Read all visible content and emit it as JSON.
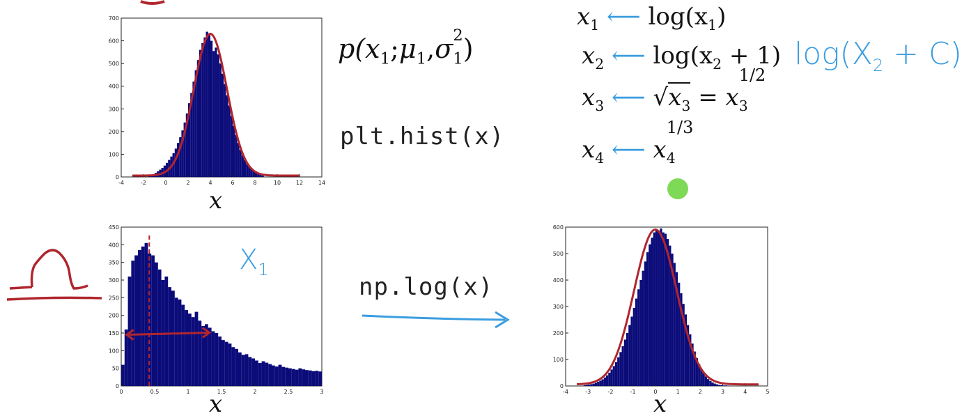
{
  "formula_p": {
    "lhs": "p(",
    "x": "x",
    "x_sub": "1",
    "semi": ";",
    "mu": "μ",
    "mu_sub": "1",
    "comma": ",",
    "sigma": "σ",
    "sigma_sub": "1",
    "sigma_sup": "2",
    "rhs": ")"
  },
  "code_hist": "plt.hist(x)",
  "code_log": "np.log(x)",
  "label_x1_hand": "X",
  "label_x1_hand_sub": "1",
  "handwritten_log": "log(X",
  "handwritten_log_sub": "2",
  "handwritten_log_rest": "+ C)",
  "transforms": [
    {
      "var": "x",
      "sub": "1",
      "expr": "log(x",
      "expr_sub": "1",
      "expr_end": ")"
    },
    {
      "var": "x",
      "sub": "2",
      "expr": "log(x",
      "expr_sub": "2",
      "expr_end": " + 1)"
    },
    {
      "var": "x",
      "sub": "3",
      "expr_sqrt": "√",
      "expr": "x",
      "expr_sub": "3",
      "eq": " = ",
      "pow_base": "x",
      "pow_sub": "3",
      "pow_sup": "1/2"
    },
    {
      "var": "x",
      "sub": "4",
      "pow_base": "x",
      "pow_sub": "4",
      "pow_sup": "1/3"
    }
  ],
  "chart_data": [
    {
      "type": "bar",
      "title": "",
      "xlabel": "x",
      "ylabel": "",
      "xlim": [
        -4,
        14
      ],
      "ylim": [
        0,
        700
      ],
      "x_ticks": [
        -4,
        -2,
        0,
        2,
        4,
        6,
        8,
        10,
        12,
        14
      ],
      "y_ticks": [
        0,
        100,
        200,
        300,
        400,
        500,
        600,
        700
      ],
      "bin_start": -1.6,
      "bin_width": 0.2,
      "values": [
        5,
        8,
        12,
        18,
        25,
        32,
        40,
        50,
        62,
        75,
        90,
        105,
        125,
        150,
        175,
        205,
        240,
        280,
        325,
        370,
        420,
        470,
        515,
        560,
        590,
        615,
        640,
        630,
        600,
        555,
        570,
        540,
        500,
        455,
        410,
        360,
        315,
        270,
        225,
        185,
        150,
        120,
        95,
        75,
        58,
        45,
        35,
        26,
        20,
        14,
        10,
        6
      ],
      "fit_mean": 4.0,
      "fit_sd": 1.5,
      "fit_peak": 625,
      "fit_range": [
        -3,
        12
      ],
      "bar_color": "#0b0b7a",
      "fit_color": "#b0262e"
    },
    {
      "type": "bar",
      "title": "",
      "xlabel": "x",
      "ylabel": "",
      "xlim": [
        0,
        3
      ],
      "ylim": [
        0,
        450
      ],
      "x_ticks": [
        0,
        0.5,
        1,
        1.5,
        2,
        2.5,
        3
      ],
      "y_ticks": [
        0,
        50,
        100,
        150,
        200,
        250,
        300,
        350,
        400,
        450
      ],
      "bin_start": 0,
      "bin_width": 0.05,
      "values": [
        60,
        160,
        310,
        355,
        370,
        385,
        395,
        405,
        375,
        370,
        350,
        330,
        300,
        310,
        280,
        270,
        250,
        245,
        230,
        215,
        205,
        195,
        210,
        185,
        170,
        175,
        165,
        155,
        150,
        140,
        130,
        125,
        120,
        110,
        105,
        95,
        88,
        90,
        82,
        78,
        72,
        65,
        70,
        66,
        62,
        58,
        55,
        60,
        54,
        52,
        50,
        48,
        46,
        50,
        47,
        45,
        44,
        42,
        43,
        41
      ],
      "dashed_line_x": 0.42,
      "arrow_x": [
        0.08,
        1.32
      ],
      "arrow_y": 145,
      "bar_color": "#0b0b7a",
      "annot_color": "#b0262e"
    },
    {
      "type": "bar",
      "title": "",
      "xlabel": "x",
      "ylabel": "",
      "xlim": [
        -4,
        5
      ],
      "ylim": [
        0,
        600
      ],
      "x_ticks": [
        -4,
        -3,
        -2,
        -1,
        0,
        1,
        2,
        3,
        4,
        5
      ],
      "y_ticks": [
        0,
        100,
        200,
        300,
        400,
        500,
        600
      ],
      "bin_start": -3.2,
      "bin_width": 0.1,
      "values": [
        3,
        4,
        5,
        7,
        9,
        12,
        16,
        20,
        25,
        32,
        40,
        50,
        62,
        75,
        90,
        108,
        128,
        150,
        175,
        200,
        230,
        262,
        295,
        330,
        365,
        400,
        435,
        470,
        505,
        535,
        560,
        580,
        590,
        585,
        595,
        580,
        575,
        555,
        530,
        500,
        465,
        430,
        390,
        350,
        310,
        270,
        230,
        195,
        160,
        130,
        105,
        82,
        64,
        48,
        36,
        26,
        19,
        13,
        9,
        6,
        4,
        3,
        2,
        2,
        1
      ],
      "fit_mean": 0.0,
      "fit_sd": 0.95,
      "fit_peak": 585,
      "fit_range": [
        -3.5,
        4.6
      ],
      "bar_color": "#0b0b7a",
      "fit_color": "#b0262e"
    }
  ],
  "colors": {
    "bar": "#0b0b7a",
    "red_ink": "#b0262e",
    "blue_ink": "#3b9de0",
    "green_dot": "#7ed957"
  }
}
